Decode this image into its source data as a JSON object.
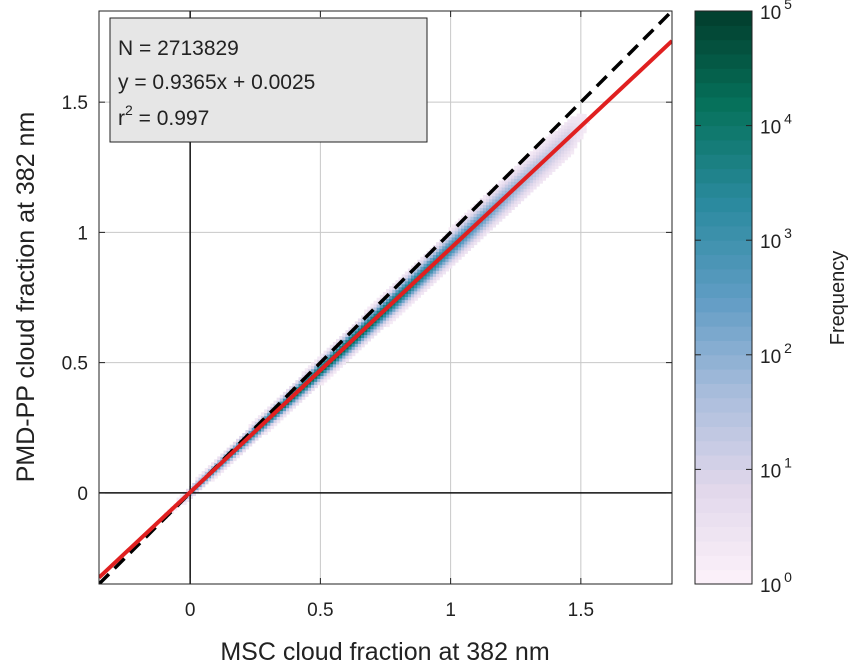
{
  "chart_data": {
    "type": "heatmap",
    "title": "",
    "xlabel": "MSC cloud fraction at 382 nm",
    "ylabel": "PMD-PP cloud fraction at 382 nm",
    "xlim": [
      -0.35,
      1.85
    ],
    "ylim": [
      -0.35,
      1.85
    ],
    "xticks": [
      0,
      0.5,
      1,
      1.5
    ],
    "xtick_labels": [
      "0",
      "0.5",
      "1",
      "1.5"
    ],
    "yticks": [
      0,
      0.5,
      1,
      1.5
    ],
    "ytick_labels": [
      "0",
      "0.5",
      "1",
      "1.5"
    ],
    "grid": true,
    "annotation": {
      "n_text": "N = 2713829",
      "fit_text": "y = 0.9365x + 0.0025",
      "r2_prefix": "r",
      "r2_sup": "2",
      "r2_value": " = 0.997"
    },
    "fit_line": {
      "slope": 0.9365,
      "intercept": 0.0025,
      "color": "#e02020"
    },
    "one_to_one_line": {
      "slope": 1,
      "intercept": 0,
      "color": "#000000",
      "style": "dashed"
    },
    "density": {
      "x_range": [
        -0.1,
        1.6
      ],
      "peak_frequency": 30000
    },
    "colorbar": {
      "label": "Frequency",
      "scale": "log",
      "range": [
        1,
        100000
      ],
      "tick_base": "10",
      "tick_exponents": [
        "0",
        "1",
        "2",
        "3",
        "4",
        "5"
      ],
      "colors": [
        "#fdf2fa",
        "#e1d7eb",
        "#a9bddc",
        "#5f9cc4",
        "#2a8a9e",
        "#06725c",
        "#023d2c"
      ]
    }
  }
}
